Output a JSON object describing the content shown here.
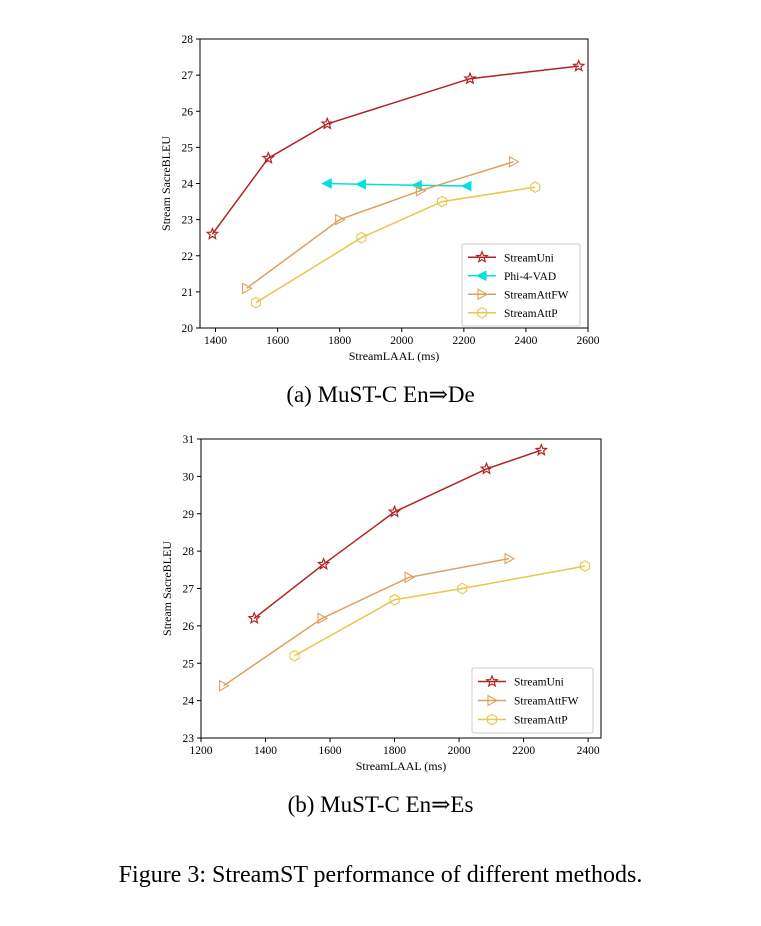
{
  "figure_caption": "Figure 3: StreamST performance of different methods.",
  "chart_data": [
    {
      "type": "line",
      "caption": "(a) MuST-C En⇒De",
      "xlabel": "StreamLAAL (ms)",
      "ylabel": "Stream SacreBLEU",
      "xlim": [
        1350,
        2600
      ],
      "ylim": [
        20,
        28
      ],
      "xticks": [
        1400,
        1600,
        1800,
        2000,
        2200,
        2400,
        2600
      ],
      "yticks": [
        20,
        21,
        22,
        23,
        24,
        25,
        26,
        27,
        28
      ],
      "legend": "lower-right",
      "series": [
        {
          "name": "StreamUni",
          "color": "#b22222",
          "marker": "star",
          "x": [
            1390,
            1570,
            1760,
            2220,
            2570
          ],
          "y": [
            22.6,
            24.7,
            25.65,
            26.9,
            27.25
          ]
        },
        {
          "name": "Phi-4-VAD",
          "color": "#00e0e0",
          "marker": "triangle-left",
          "x": [
            1760,
            1870,
            2050,
            2210
          ],
          "y": [
            24.0,
            23.98,
            23.95,
            23.93
          ]
        },
        {
          "name": "StreamAttFW",
          "color": "#dea060",
          "marker": "triangle-right",
          "x": [
            1500,
            1800,
            2060,
            2360
          ],
          "y": [
            21.1,
            23.0,
            23.8,
            24.6
          ]
        },
        {
          "name": "StreamAttP",
          "color": "#e6c84a",
          "marker": "hexagon",
          "x": [
            1530,
            1870,
            2130,
            2430
          ],
          "y": [
            20.7,
            22.5,
            23.5,
            23.9
          ]
        }
      ]
    },
    {
      "type": "line",
      "caption": "(b) MuST-C En⇒Es",
      "xlabel": "StreamLAAL (ms)",
      "ylabel": "Stream SacreBLEU",
      "xlim": [
        1200,
        2440
      ],
      "ylim": [
        23,
        31
      ],
      "xticks": [
        1200,
        1400,
        1600,
        1800,
        2000,
        2200,
        2400
      ],
      "yticks": [
        23,
        24,
        25,
        26,
        27,
        28,
        29,
        30,
        31
      ],
      "legend": "lower-right",
      "series": [
        {
          "name": "StreamUni",
          "color": "#b22222",
          "marker": "star",
          "x": [
            1365,
            1580,
            1800,
            2085,
            2255
          ],
          "y": [
            26.2,
            27.65,
            29.05,
            30.2,
            30.7
          ]
        },
        {
          "name": "StreamAttFW",
          "color": "#dea060",
          "marker": "triangle-right",
          "x": [
            1270,
            1575,
            1845,
            2155
          ],
          "y": [
            24.4,
            26.2,
            27.3,
            27.8
          ]
        },
        {
          "name": "StreamAttP",
          "color": "#e6c84a",
          "marker": "hexagon",
          "x": [
            1490,
            1800,
            2010,
            2390
          ],
          "y": [
            25.2,
            26.7,
            27.0,
            27.6
          ]
        }
      ]
    }
  ]
}
